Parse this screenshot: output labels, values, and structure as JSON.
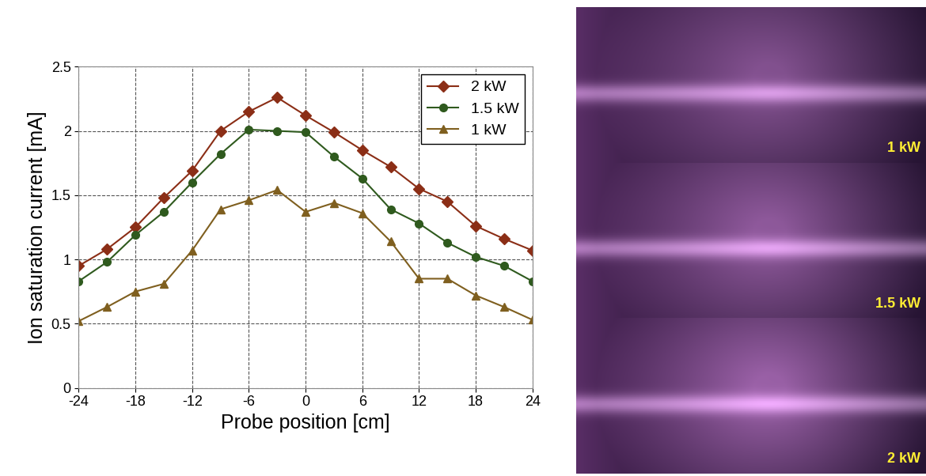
{
  "chart_data": {
    "type": "line",
    "x_label": "Probe position [cm]",
    "y_label": "Ion saturation current [mA]",
    "x": [
      -24,
      -21,
      -18,
      -15,
      -12,
      -9,
      -6,
      -3,
      0,
      3,
      6,
      9,
      12,
      15,
      18,
      21,
      24
    ],
    "series": [
      {
        "name": "2 kW",
        "color": "#8b2e16",
        "marker": "diamond",
        "line_style": "solid",
        "values": [
          0.95,
          1.08,
          1.25,
          1.48,
          1.69,
          2.0,
          2.15,
          2.26,
          2.12,
          1.99,
          1.85,
          1.72,
          1.55,
          1.45,
          1.26,
          1.16,
          1.07
        ]
      },
      {
        "name": "1.5 kW",
        "color": "#2f5a1e",
        "marker": "circle",
        "line_style": "solid",
        "values": [
          0.83,
          0.98,
          1.19,
          1.37,
          1.6,
          1.82,
          2.01,
          2.0,
          1.99,
          1.8,
          1.63,
          1.39,
          1.28,
          1.13,
          1.02,
          0.95,
          0.83
        ]
      },
      {
        "name": "1 kW",
        "color": "#7f5f1f",
        "marker": "triangle",
        "line_style": "solid",
        "values": [
          0.52,
          0.63,
          0.75,
          0.81,
          1.07,
          1.39,
          1.46,
          1.54,
          1.37,
          1.44,
          1.36,
          1.14,
          0.85,
          0.85,
          0.72,
          0.63,
          0.53
        ]
      }
    ],
    "xlim": [
      -24,
      24
    ],
    "xticks": [
      -24,
      -18,
      -12,
      -6,
      0,
      6,
      12,
      18,
      24
    ],
    "ylim": [
      0,
      2.5
    ],
    "yticks": [
      0,
      0.5,
      1,
      1.5,
      2,
      2.5
    ],
    "grid": true,
    "legend": "upper right"
  },
  "photos": {
    "panels": [
      {
        "label": "1 kW"
      },
      {
        "label": "1.5 kW"
      },
      {
        "label": "2 kW"
      }
    ]
  }
}
